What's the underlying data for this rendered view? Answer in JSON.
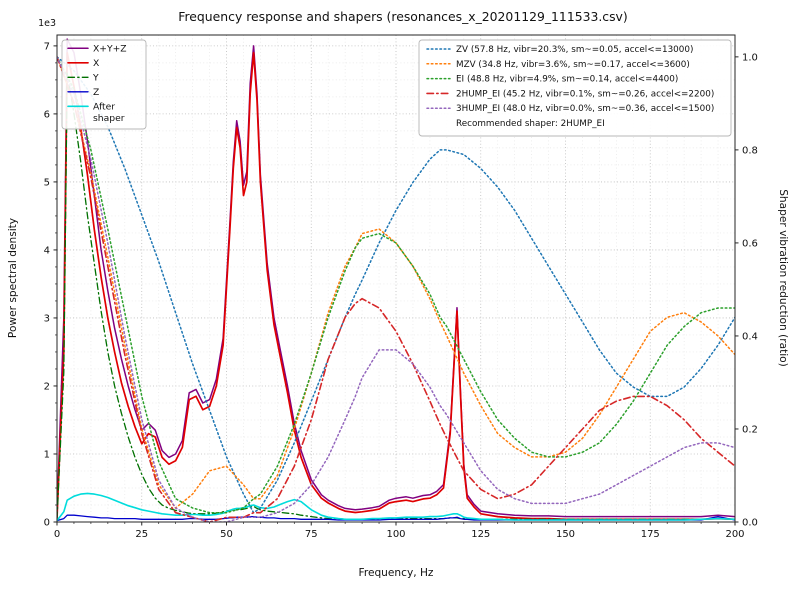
{
  "chart_data": {
    "type": "line",
    "title": "Frequency response and shapers (resonances_x_20201129_111533.csv)",
    "xlabel": "Frequency, Hz",
    "ylabel_left": "Power spectral density",
    "ylabel_right": "Shaper vibration reduction (ratio)",
    "yleft_scale": "1e3",
    "xlim": [
      0,
      200
    ],
    "x_major_ticks": [
      0,
      25,
      50,
      75,
      100,
      125,
      150,
      175,
      200
    ],
    "x_minor_step": 5,
    "ylim_left": [
      0,
      7.16
    ],
    "yleft_major_ticks": [
      0,
      1,
      2,
      3,
      4,
      5,
      6,
      7
    ],
    "yleft_minor_step": 0.25,
    "ylim_right": [
      0,
      1.047
    ],
    "yright_major_ticks": [
      0.0,
      0.2,
      0.4,
      0.6,
      0.8,
      1.0
    ],
    "grid": true,
    "legend_left": {
      "entries": [
        {
          "series": "X+Y+Z",
          "label": "X+Y+Z"
        },
        {
          "series": "X",
          "label": "X"
        },
        {
          "series": "Y",
          "label": "Y"
        },
        {
          "series": "Z",
          "label": "Z"
        },
        {
          "series": "After shaper",
          "label_lines": [
            "After",
            "shaper"
          ]
        }
      ]
    },
    "legend_right": {
      "entries": [
        {
          "series": "ZV",
          "label": "ZV (57.8 Hz, vibr=20.3%, sm~=0.05, accel<=13000)"
        },
        {
          "series": "MZV",
          "label": "MZV (34.8 Hz, vibr=3.6%, sm~=0.17, accel<=3600)"
        },
        {
          "series": "EI",
          "label": "EI (48.8 Hz, vibr=4.9%, sm~=0.14, accel<=4400)"
        },
        {
          "series": "2HUMP_EI",
          "label": "2HUMP_EI (45.2 Hz, vibr=0.1%, sm~=0.26, accel<=2200)"
        },
        {
          "series": "3HUMP_EI",
          "label": "3HUMP_EI (48.0 Hz, vibr=0.0%, sm~=0.36, accel<=1500)"
        },
        {
          "series": null,
          "label": "Recommended shaper: 2HUMP_EI"
        }
      ]
    },
    "psd_x": [
      0,
      2,
      3,
      5,
      7,
      9,
      11,
      13,
      15,
      17,
      19,
      21,
      23,
      25,
      27,
      29,
      31,
      33,
      35,
      37,
      39,
      41,
      43,
      45,
      47,
      49,
      51,
      52,
      53,
      54,
      55,
      56,
      57,
      58,
      59,
      60,
      62,
      64,
      66,
      68,
      70,
      72,
      75,
      78,
      80,
      83,
      85,
      88,
      90,
      93,
      95,
      98,
      100,
      103,
      105,
      108,
      110,
      112,
      114,
      116,
      117,
      118,
      119,
      120,
      121,
      123,
      125,
      130,
      135,
      140,
      145,
      150,
      155,
      160,
      165,
      170,
      175,
      180,
      185,
      190,
      195,
      200
    ],
    "shaper_x": [
      0,
      5,
      10,
      15,
      20,
      25,
      30,
      35,
      40,
      45,
      50,
      55,
      58,
      60,
      65,
      70,
      75,
      80,
      85,
      88,
      90,
      95,
      100,
      105,
      110,
      113,
      115,
      120,
      125,
      130,
      135,
      140,
      145,
      150,
      155,
      160,
      165,
      170,
      175,
      180,
      185,
      190,
      195,
      200
    ],
    "series": [
      {
        "name": "X+Y+Z",
        "axis": "left",
        "color": "#800080",
        "style": "solid",
        "width": 1.5,
        "x": "psd_x",
        "values": [
          0.1,
          3.0,
          7.1,
          6.9,
          6.3,
          5.6,
          4.8,
          4.0,
          3.4,
          2.85,
          2.4,
          2.0,
          1.65,
          1.35,
          1.45,
          1.35,
          1.05,
          0.95,
          1.0,
          1.2,
          1.9,
          1.95,
          1.75,
          1.8,
          2.1,
          2.7,
          4.4,
          5.3,
          5.9,
          5.6,
          4.95,
          5.15,
          6.45,
          7.0,
          6.3,
          5.1,
          3.8,
          3.0,
          2.5,
          2.0,
          1.45,
          1.05,
          0.62,
          0.4,
          0.32,
          0.24,
          0.2,
          0.18,
          0.19,
          0.21,
          0.23,
          0.32,
          0.35,
          0.37,
          0.35,
          0.39,
          0.4,
          0.45,
          0.55,
          1.35,
          2.25,
          3.15,
          1.95,
          0.85,
          0.4,
          0.26,
          0.16,
          0.12,
          0.1,
          0.09,
          0.09,
          0.08,
          0.08,
          0.08,
          0.08,
          0.08,
          0.08,
          0.08,
          0.08,
          0.08,
          0.1,
          0.08
        ]
      },
      {
        "name": "X",
        "axis": "left",
        "color": "#e00000",
        "style": "solid",
        "width": 1.7,
        "x": "psd_x",
        "values": [
          0.05,
          2.5,
          6.9,
          6.4,
          5.8,
          5.1,
          4.3,
          3.6,
          3.0,
          2.5,
          2.05,
          1.7,
          1.4,
          1.15,
          1.3,
          1.25,
          0.95,
          0.85,
          0.9,
          1.1,
          1.8,
          1.85,
          1.65,
          1.7,
          2.0,
          2.6,
          4.3,
          5.2,
          5.8,
          5.5,
          4.8,
          5.0,
          6.3,
          6.9,
          6.2,
          5.0,
          3.7,
          2.9,
          2.4,
          1.9,
          1.35,
          0.95,
          0.55,
          0.35,
          0.28,
          0.2,
          0.16,
          0.14,
          0.15,
          0.17,
          0.19,
          0.28,
          0.3,
          0.32,
          0.3,
          0.34,
          0.35,
          0.4,
          0.5,
          1.3,
          2.2,
          3.1,
          1.9,
          0.8,
          0.35,
          0.22,
          0.12,
          0.08,
          0.06,
          0.05,
          0.05,
          0.04,
          0.04,
          0.04,
          0.04,
          0.04,
          0.04,
          0.04,
          0.04,
          0.04,
          0.05,
          0.04
        ]
      },
      {
        "name": "Y",
        "axis": "left",
        "color": "#007000",
        "style": "dashdot",
        "width": 1.3,
        "x": "psd_x",
        "values": [
          0.05,
          2.2,
          6.6,
          6.0,
          5.3,
          4.5,
          3.8,
          3.1,
          2.5,
          2.0,
          1.6,
          1.25,
          0.95,
          0.7,
          0.5,
          0.35,
          0.25,
          0.2,
          0.17,
          0.15,
          0.13,
          0.12,
          0.12,
          0.12,
          0.13,
          0.15,
          0.17,
          0.18,
          0.18,
          0.18,
          0.19,
          0.2,
          0.22,
          0.23,
          0.2,
          0.18,
          0.16,
          0.15,
          0.14,
          0.13,
          0.12,
          0.1,
          0.08,
          0.06,
          0.05,
          0.05,
          0.04,
          0.04,
          0.04,
          0.04,
          0.04,
          0.04,
          0.05,
          0.05,
          0.05,
          0.05,
          0.05,
          0.05,
          0.05,
          0.06,
          0.06,
          0.06,
          0.05,
          0.05,
          0.05,
          0.04,
          0.04,
          0.04,
          0.04,
          0.04,
          0.04,
          0.04,
          0.04,
          0.04,
          0.04,
          0.04,
          0.04,
          0.04,
          0.04,
          0.04,
          0.05,
          0.04
        ]
      },
      {
        "name": "Z",
        "axis": "left",
        "color": "#0000cc",
        "style": "solid",
        "width": 1.3,
        "x": "psd_x",
        "values": [
          0.02,
          0.05,
          0.1,
          0.1,
          0.09,
          0.08,
          0.07,
          0.06,
          0.06,
          0.05,
          0.05,
          0.05,
          0.05,
          0.04,
          0.04,
          0.04,
          0.04,
          0.04,
          0.04,
          0.04,
          0.05,
          0.05,
          0.04,
          0.04,
          0.04,
          0.05,
          0.06,
          0.06,
          0.07,
          0.07,
          0.07,
          0.07,
          0.08,
          0.08,
          0.07,
          0.07,
          0.06,
          0.06,
          0.05,
          0.05,
          0.05,
          0.04,
          0.04,
          0.04,
          0.04,
          0.03,
          0.03,
          0.03,
          0.03,
          0.03,
          0.03,
          0.04,
          0.04,
          0.04,
          0.04,
          0.04,
          0.04,
          0.04,
          0.05,
          0.06,
          0.06,
          0.07,
          0.05,
          0.04,
          0.04,
          0.03,
          0.03,
          0.03,
          0.03,
          0.03,
          0.03,
          0.03,
          0.03,
          0.03,
          0.03,
          0.03,
          0.03,
          0.03,
          0.03,
          0.03,
          0.08,
          0.03
        ]
      },
      {
        "name": "After shaper",
        "axis": "left",
        "color": "#00dcdc",
        "style": "solid",
        "width": 1.6,
        "x": "psd_x",
        "values": [
          0.02,
          0.15,
          0.32,
          0.38,
          0.41,
          0.42,
          0.41,
          0.39,
          0.36,
          0.32,
          0.28,
          0.24,
          0.21,
          0.18,
          0.16,
          0.14,
          0.12,
          0.11,
          0.1,
          0.1,
          0.11,
          0.11,
          0.1,
          0.1,
          0.11,
          0.13,
          0.17,
          0.19,
          0.2,
          0.2,
          0.21,
          0.22,
          0.24,
          0.25,
          0.23,
          0.21,
          0.2,
          0.22,
          0.26,
          0.3,
          0.33,
          0.3,
          0.18,
          0.1,
          0.07,
          0.05,
          0.04,
          0.04,
          0.04,
          0.05,
          0.05,
          0.06,
          0.06,
          0.07,
          0.07,
          0.07,
          0.08,
          0.08,
          0.09,
          0.11,
          0.12,
          0.12,
          0.1,
          0.07,
          0.06,
          0.05,
          0.04,
          0.04,
          0.03,
          0.03,
          0.03,
          0.03,
          0.03,
          0.03,
          0.03,
          0.03,
          0.03,
          0.03,
          0.03,
          0.04,
          0.05,
          0.04
        ]
      },
      {
        "name": "ZV",
        "axis": "right",
        "color": "#1f77b4",
        "style": "dotted",
        "width": 1.5,
        "x": "shaper_x",
        "values": [
          1.0,
          0.97,
          0.92,
          0.85,
          0.76,
          0.66,
          0.56,
          0.45,
          0.34,
          0.24,
          0.14,
          0.06,
          0.02,
          0.03,
          0.09,
          0.17,
          0.26,
          0.35,
          0.44,
          0.49,
          0.52,
          0.6,
          0.67,
          0.73,
          0.78,
          0.8,
          0.8,
          0.79,
          0.76,
          0.72,
          0.67,
          0.61,
          0.55,
          0.49,
          0.43,
          0.37,
          0.32,
          0.29,
          0.27,
          0.27,
          0.29,
          0.33,
          0.38,
          0.44
        ]
      },
      {
        "name": "MZV",
        "axis": "right",
        "color": "#ff7f0e",
        "style": "dotted",
        "width": 1.5,
        "x": "shaper_x",
        "values": [
          1.0,
          0.9,
          0.75,
          0.57,
          0.38,
          0.2,
          0.08,
          0.03,
          0.06,
          0.11,
          0.12,
          0.08,
          0.05,
          0.05,
          0.1,
          0.2,
          0.32,
          0.45,
          0.55,
          0.59,
          0.62,
          0.63,
          0.6,
          0.55,
          0.48,
          0.43,
          0.4,
          0.32,
          0.25,
          0.19,
          0.16,
          0.14,
          0.14,
          0.15,
          0.18,
          0.23,
          0.29,
          0.35,
          0.41,
          0.44,
          0.45,
          0.43,
          0.4,
          0.36
        ]
      },
      {
        "name": "EI",
        "axis": "right",
        "color": "#2ca02c",
        "style": "dotted",
        "width": 1.5,
        "x": "shaper_x",
        "values": [
          1.0,
          0.93,
          0.8,
          0.63,
          0.45,
          0.27,
          0.13,
          0.05,
          0.03,
          0.02,
          0.02,
          0.03,
          0.05,
          0.06,
          0.12,
          0.21,
          0.32,
          0.44,
          0.54,
          0.59,
          0.61,
          0.62,
          0.6,
          0.55,
          0.49,
          0.44,
          0.42,
          0.35,
          0.28,
          0.22,
          0.18,
          0.15,
          0.14,
          0.14,
          0.15,
          0.17,
          0.21,
          0.26,
          0.32,
          0.38,
          0.42,
          0.45,
          0.46,
          0.46
        ]
      },
      {
        "name": "2HUMP_EI",
        "axis": "right",
        "color": "#d62728",
        "style": "dashdot",
        "width": 1.6,
        "x": "shaper_x",
        "values": [
          1.0,
          0.9,
          0.74,
          0.55,
          0.36,
          0.19,
          0.07,
          0.02,
          0.01,
          0.0,
          0.01,
          0.01,
          0.02,
          0.02,
          0.05,
          0.12,
          0.22,
          0.35,
          0.44,
          0.47,
          0.48,
          0.46,
          0.41,
          0.34,
          0.26,
          0.21,
          0.18,
          0.11,
          0.07,
          0.05,
          0.06,
          0.08,
          0.12,
          0.16,
          0.2,
          0.24,
          0.26,
          0.27,
          0.27,
          0.25,
          0.22,
          0.18,
          0.15,
          0.12
        ]
      },
      {
        "name": "3HUMP_EI",
        "axis": "right",
        "color": "#9467bd",
        "style": "dotted",
        "width": 1.5,
        "x": "shaper_x",
        "values": [
          1.0,
          0.92,
          0.78,
          0.6,
          0.4,
          0.22,
          0.09,
          0.03,
          0.01,
          0.0,
          0.0,
          0.01,
          0.01,
          0.01,
          0.02,
          0.04,
          0.08,
          0.14,
          0.22,
          0.27,
          0.31,
          0.37,
          0.37,
          0.34,
          0.29,
          0.25,
          0.23,
          0.17,
          0.11,
          0.07,
          0.05,
          0.04,
          0.04,
          0.04,
          0.05,
          0.06,
          0.08,
          0.1,
          0.12,
          0.14,
          0.16,
          0.17,
          0.17,
          0.16
        ]
      }
    ]
  }
}
